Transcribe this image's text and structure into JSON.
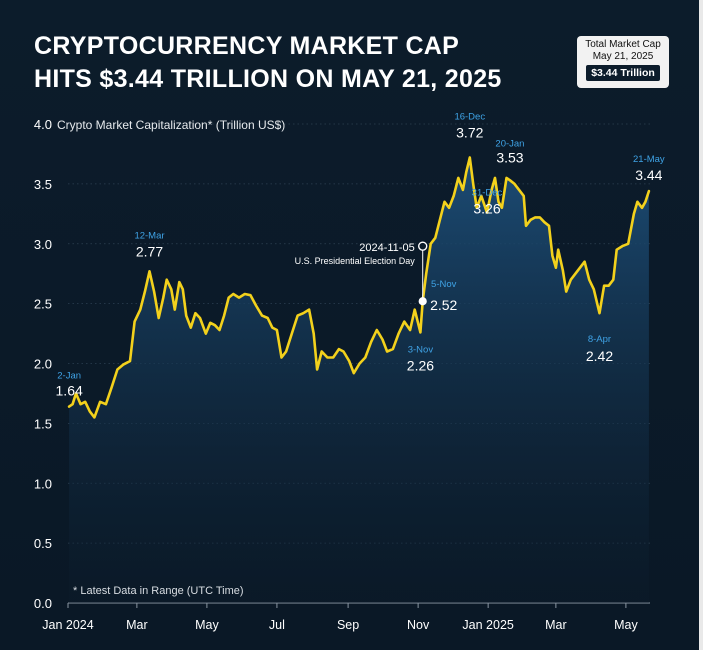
{
  "title_lines": [
    "Cryptocurrency Market Cap",
    "Hits $3.44 Trillion on May 21, 2025"
  ],
  "badge": {
    "label": "Total Market Cap",
    "date": "May 21, 2025",
    "value": "$3.44 Trillion"
  },
  "footnote": "* Latest Data in Range (UTC Time)",
  "colors": {
    "background": "#0c1c2b",
    "line": "#f3d11c",
    "area_top": "#1d4f7a",
    "date_label": "#3fa3e6",
    "text": "#ffffff"
  },
  "chart_data": {
    "type": "area",
    "ylabel": "Crypto Market Capitalization* (Trillion US$)",
    "ylim": [
      0,
      4.0
    ],
    "yticks": [
      "0.0",
      "0.5",
      "1.0",
      "1.5",
      "2.0",
      "2.5",
      "3.0",
      "3.5",
      "4.0"
    ],
    "xlim": [
      "2024-01-01",
      "2025-05-22"
    ],
    "xticks": [
      {
        "label": "Jan 2024",
        "date": "2024-01-01"
      },
      {
        "label": "Mar",
        "date": "2024-03-01"
      },
      {
        "label": "May",
        "date": "2024-05-01"
      },
      {
        "label": "Jul",
        "date": "2024-07-01"
      },
      {
        "label": "Sep",
        "date": "2024-09-01"
      },
      {
        "label": "Nov",
        "date": "2024-11-01"
      },
      {
        "label": "Jan 2025",
        "date": "2025-01-01"
      },
      {
        "label": "Mar",
        "date": "2025-03-01"
      },
      {
        "label": "May",
        "date": "2025-05-01"
      }
    ],
    "grid": true,
    "series": [
      {
        "points": [
          [
            "2024-01-02",
            1.64
          ],
          [
            "2024-01-05",
            1.66
          ],
          [
            "2024-01-08",
            1.75
          ],
          [
            "2024-01-12",
            1.66
          ],
          [
            "2024-01-16",
            1.68
          ],
          [
            "2024-01-20",
            1.6
          ],
          [
            "2024-01-24",
            1.55
          ],
          [
            "2024-01-29",
            1.68
          ],
          [
            "2024-02-03",
            1.66
          ],
          [
            "2024-02-08",
            1.8
          ],
          [
            "2024-02-13",
            1.95
          ],
          [
            "2024-02-18",
            1.99
          ],
          [
            "2024-02-24",
            2.02
          ],
          [
            "2024-02-28",
            2.35
          ],
          [
            "2024-03-04",
            2.45
          ],
          [
            "2024-03-08",
            2.6
          ],
          [
            "2024-03-12",
            2.77
          ],
          [
            "2024-03-16",
            2.6
          ],
          [
            "2024-03-20",
            2.38
          ],
          [
            "2024-03-24",
            2.55
          ],
          [
            "2024-03-27",
            2.7
          ],
          [
            "2024-03-31",
            2.62
          ],
          [
            "2024-04-03",
            2.45
          ],
          [
            "2024-04-07",
            2.68
          ],
          [
            "2024-04-10",
            2.62
          ],
          [
            "2024-04-13",
            2.4
          ],
          [
            "2024-04-17",
            2.3
          ],
          [
            "2024-04-21",
            2.42
          ],
          [
            "2024-04-25",
            2.38
          ],
          [
            "2024-04-30",
            2.25
          ],
          [
            "2024-05-04",
            2.34
          ],
          [
            "2024-05-08",
            2.32
          ],
          [
            "2024-05-12",
            2.28
          ],
          [
            "2024-05-16",
            2.4
          ],
          [
            "2024-05-20",
            2.55
          ],
          [
            "2024-05-24",
            2.58
          ],
          [
            "2024-05-29",
            2.55
          ],
          [
            "2024-06-03",
            2.58
          ],
          [
            "2024-06-08",
            2.57
          ],
          [
            "2024-06-13",
            2.48
          ],
          [
            "2024-06-18",
            2.4
          ],
          [
            "2024-06-23",
            2.38
          ],
          [
            "2024-06-27",
            2.3
          ],
          [
            "2024-07-01",
            2.28
          ],
          [
            "2024-07-05",
            2.05
          ],
          [
            "2024-07-09",
            2.1
          ],
          [
            "2024-07-14",
            2.25
          ],
          [
            "2024-07-19",
            2.4
          ],
          [
            "2024-07-24",
            2.42
          ],
          [
            "2024-07-29",
            2.45
          ],
          [
            "2024-08-02",
            2.25
          ],
          [
            "2024-08-05",
            1.95
          ],
          [
            "2024-08-09",
            2.1
          ],
          [
            "2024-08-14",
            2.05
          ],
          [
            "2024-08-19",
            2.05
          ],
          [
            "2024-08-24",
            2.12
          ],
          [
            "2024-08-28",
            2.1
          ],
          [
            "2024-09-02",
            2.02
          ],
          [
            "2024-09-06",
            1.92
          ],
          [
            "2024-09-11",
            2.0
          ],
          [
            "2024-09-16",
            2.05
          ],
          [
            "2024-09-21",
            2.18
          ],
          [
            "2024-09-26",
            2.28
          ],
          [
            "2024-10-01",
            2.2
          ],
          [
            "2024-10-05",
            2.1
          ],
          [
            "2024-10-10",
            2.12
          ],
          [
            "2024-10-15",
            2.25
          ],
          [
            "2024-10-20",
            2.35
          ],
          [
            "2024-10-25",
            2.28
          ],
          [
            "2024-10-29",
            2.45
          ],
          [
            "2024-11-03",
            2.26
          ],
          [
            "2024-11-05",
            2.52
          ],
          [
            "2024-11-08",
            2.75
          ],
          [
            "2024-11-12",
            3.0
          ],
          [
            "2024-11-16",
            3.05
          ],
          [
            "2024-11-20",
            3.2
          ],
          [
            "2024-11-24",
            3.35
          ],
          [
            "2024-11-28",
            3.3
          ],
          [
            "2024-12-02",
            3.4
          ],
          [
            "2024-12-06",
            3.55
          ],
          [
            "2024-12-10",
            3.45
          ],
          [
            "2024-12-13",
            3.6
          ],
          [
            "2024-12-16",
            3.72
          ],
          [
            "2024-12-19",
            3.5
          ],
          [
            "2024-12-22",
            3.3
          ],
          [
            "2024-12-26",
            3.4
          ],
          [
            "2024-12-31",
            3.26
          ],
          [
            "2025-01-04",
            3.45
          ],
          [
            "2025-01-07",
            3.55
          ],
          [
            "2025-01-10",
            3.35
          ],
          [
            "2025-01-13",
            3.3
          ],
          [
            "2025-01-17",
            3.55
          ],
          [
            "2025-01-20",
            3.53
          ],
          [
            "2025-01-24",
            3.5
          ],
          [
            "2025-01-28",
            3.45
          ],
          [
            "2025-02-01",
            3.4
          ],
          [
            "2025-02-03",
            3.15
          ],
          [
            "2025-02-07",
            3.2
          ],
          [
            "2025-02-11",
            3.22
          ],
          [
            "2025-02-15",
            3.22
          ],
          [
            "2025-02-19",
            3.18
          ],
          [
            "2025-02-23",
            3.15
          ],
          [
            "2025-02-26",
            2.9
          ],
          [
            "2025-03-01",
            2.8
          ],
          [
            "2025-03-03",
            2.95
          ],
          [
            "2025-03-07",
            2.78
          ],
          [
            "2025-03-10",
            2.6
          ],
          [
            "2025-03-14",
            2.7
          ],
          [
            "2025-03-18",
            2.75
          ],
          [
            "2025-03-22",
            2.8
          ],
          [
            "2025-03-26",
            2.85
          ],
          [
            "2025-03-30",
            2.7
          ],
          [
            "2025-04-03",
            2.62
          ],
          [
            "2025-04-08",
            2.42
          ],
          [
            "2025-04-12",
            2.65
          ],
          [
            "2025-04-16",
            2.65
          ],
          [
            "2025-04-20",
            2.7
          ],
          [
            "2025-04-23",
            2.95
          ],
          [
            "2025-04-28",
            2.98
          ],
          [
            "2025-05-03",
            3.0
          ],
          [
            "2025-05-08",
            3.25
          ],
          [
            "2025-05-11",
            3.35
          ],
          [
            "2025-05-15",
            3.3
          ],
          [
            "2025-05-18",
            3.35
          ],
          [
            "2025-05-21",
            3.44
          ]
        ]
      }
    ],
    "annotations": [
      {
        "date": "2024-01-02",
        "date_label": "2-Jan",
        "value": "1.64",
        "y": 1.64
      },
      {
        "date": "2024-03-12",
        "date_label": "12-Mar",
        "value": "2.77",
        "y": 2.77
      },
      {
        "date": "2024-11-03",
        "date_label": "3-Nov",
        "value": "2.26",
        "y": 2.26
      },
      {
        "date": "2024-11-05",
        "date_label": "5-Nov",
        "value": "2.52",
        "y": 2.52
      },
      {
        "date": "2024-12-16",
        "date_label": "16-Dec",
        "value": "3.72",
        "y": 3.72
      },
      {
        "date": "2024-12-31",
        "date_label": "31-Dec",
        "value": "3.26",
        "y": 3.26
      },
      {
        "date": "2025-01-20",
        "date_label": "20-Jan",
        "value": "3.53",
        "y": 3.53
      },
      {
        "date": "2025-04-08",
        "date_label": "8-Apr",
        "value": "2.42",
        "y": 2.42
      },
      {
        "date": "2025-05-21",
        "date_label": "21-May",
        "value": "3.44",
        "y": 3.44
      }
    ],
    "event": {
      "date": "2024-11-05",
      "label": "2024-11-05",
      "description": "U.S. Presidential Election Day"
    }
  }
}
